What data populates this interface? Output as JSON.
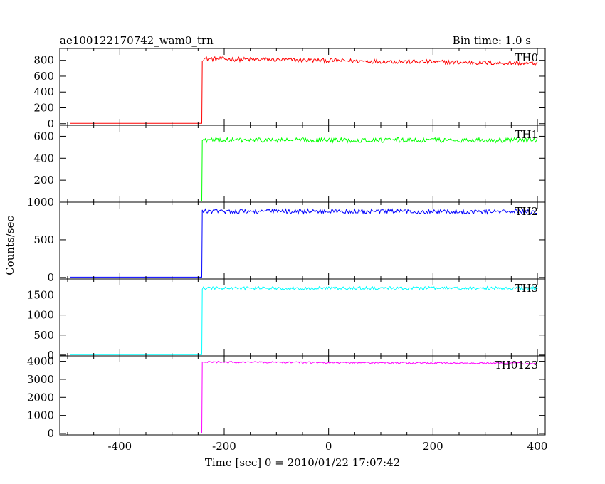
{
  "chart_data": {
    "type": "line",
    "title": "ae100122170742_wam0_trn",
    "subtitle": "Bin time: 1.0 s",
    "xlabel": "Time [sec] 0 = 2010/01/22 17:07:42",
    "ylabel": "Counts/sec",
    "xlim": [
      -515,
      415
    ],
    "x_ticks": [
      -400,
      -200,
      0,
      200,
      400
    ],
    "grid": false,
    "step_time": -243,
    "x_start": -495,
    "x_end": 400,
    "panels": [
      {
        "name": "TH0",
        "color": "#ff0000",
        "ylim": [
          -20,
          950
        ],
        "y_ticks": [
          0,
          200,
          400,
          600,
          800
        ],
        "pre_level": 5,
        "post_start": 820,
        "post_end": 760,
        "noise": 28,
        "peak": 870
      },
      {
        "name": "TH1",
        "color": "#00ff00",
        "ylim": [
          0,
          700
        ],
        "y_ticks": [
          200,
          400,
          600
        ],
        "pre_level": 10,
        "post_start": 565,
        "post_end": 565,
        "noise": 22,
        "peak": 620
      },
      {
        "name": "TH2",
        "color": "#0000ff",
        "ylim": [
          -20,
          1000
        ],
        "y_ticks": [
          0,
          500,
          1000
        ],
        "pre_level": 5,
        "post_start": 880,
        "post_end": 875,
        "noise": 30,
        "peak": 940
      },
      {
        "name": "TH3",
        "color": "#00ffff",
        "ylim": [
          -20,
          1900
        ],
        "y_ticks": [
          0,
          500,
          1000,
          1500
        ],
        "pre_level": 10,
        "post_start": 1670,
        "post_end": 1670,
        "noise": 40,
        "peak": 1780
      },
      {
        "name": "TH0123",
        "color": "#ff00ff",
        "ylim": [
          -80,
          4300
        ],
        "y_ticks": [
          0,
          1000,
          2000,
          3000,
          4000
        ],
        "pre_level": 20,
        "post_start": 3960,
        "post_end": 3880,
        "noise": 45,
        "peak": 4020
      }
    ]
  }
}
